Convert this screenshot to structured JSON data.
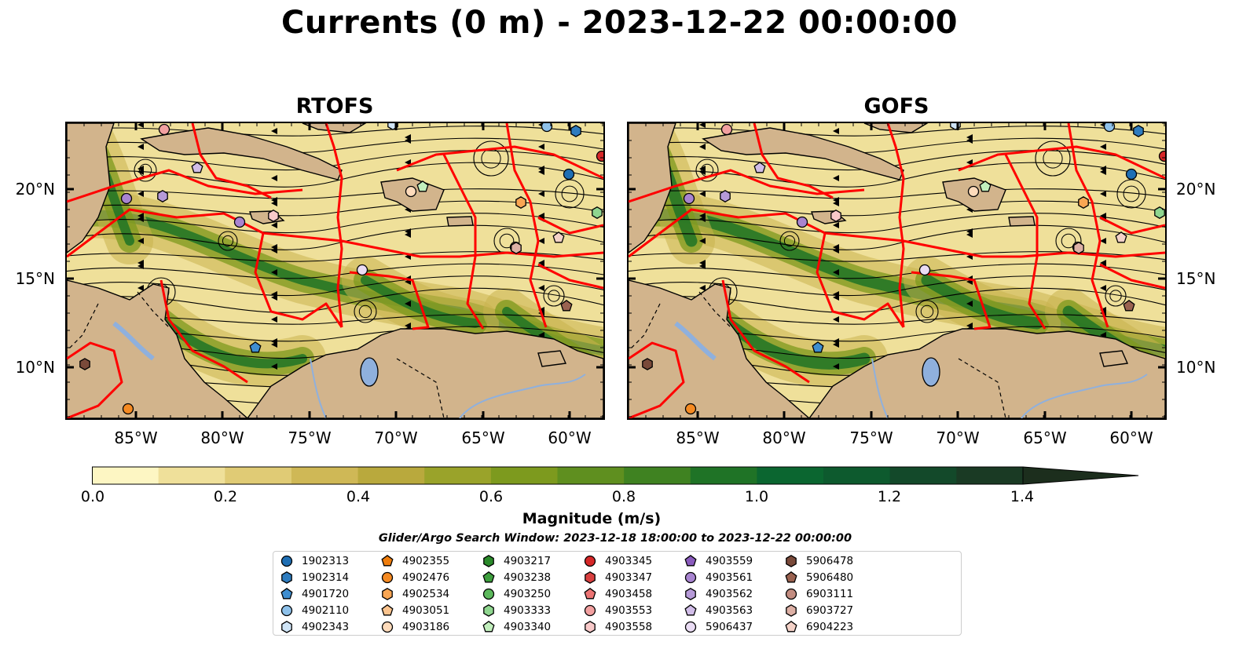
{
  "title": "Currents (0 m) - 2023-12-22 00:00:00",
  "panels": [
    {
      "title": "RTOFS"
    },
    {
      "title": "GOFS"
    }
  ],
  "lat_labels": [
    "20°N",
    "15°N",
    "10°N"
  ],
  "lon_labels": [
    "85°W",
    "80°W",
    "75°W",
    "70°W",
    "65°W",
    "60°W"
  ],
  "colorbar": {
    "label": "Magnitude (m/s)",
    "ticks": [
      "0.0",
      "0.2",
      "0.4",
      "0.6",
      "0.8",
      "1.0",
      "1.2",
      "1.4"
    ],
    "colors": [
      "#fdf6c3",
      "#efe09a",
      "#e0cb75",
      "#cfb856",
      "#b9a93d",
      "#9aa32a",
      "#7d9a1e",
      "#5f8f1f",
      "#3f8221",
      "#1f7326",
      "#0b6630",
      "#0d5a2e",
      "#13492a",
      "#1a3a24",
      "#1c2e1d"
    ],
    "extend": "max"
  },
  "search_window": "Glider/Argo Search Window: 2023-12-18 18:00:00 to 2023-12-22 00:00:00",
  "map_colors": {
    "land": "#d2b48c",
    "eez_lines": "#ff0000",
    "water_bodies": "#8fb0dd"
  },
  "legend": [
    {
      "id": "1902313",
      "shape": "circle",
      "color": "#1f6fb4"
    },
    {
      "id": "1902314",
      "shape": "hexagon",
      "color": "#2e7cbf"
    },
    {
      "id": "4901720",
      "shape": "pentagon",
      "color": "#3f8ed0"
    },
    {
      "id": "4902110",
      "shape": "circle",
      "color": "#8ec1ea"
    },
    {
      "id": "4902343",
      "shape": "hexagon",
      "color": "#cfe4f6"
    },
    {
      "id": "4902355",
      "shape": "pentagon",
      "color": "#ef7d0d"
    },
    {
      "id": "4902476",
      "shape": "circle",
      "color": "#f58a22"
    },
    {
      "id": "4902534",
      "shape": "hexagon",
      "color": "#f9a653"
    },
    {
      "id": "4903051",
      "shape": "pentagon",
      "color": "#fcc48e"
    },
    {
      "id": "4903186",
      "shape": "circle",
      "color": "#fedbbb"
    },
    {
      "id": "4903217",
      "shape": "hexagon",
      "color": "#2a8a2a"
    },
    {
      "id": "4903238",
      "shape": "pentagon",
      "color": "#3d9e3d"
    },
    {
      "id": "4903250",
      "shape": "circle",
      "color": "#5cb85c"
    },
    {
      "id": "4903333",
      "shape": "hexagon",
      "color": "#8fd68f"
    },
    {
      "id": "4903340",
      "shape": "pentagon",
      "color": "#c2efbd"
    },
    {
      "id": "4903345",
      "shape": "circle",
      "color": "#d62728"
    },
    {
      "id": "4903347",
      "shape": "hexagon",
      "color": "#d94040"
    },
    {
      "id": "4903458",
      "shape": "pentagon",
      "color": "#ec7474"
    },
    {
      "id": "4903553",
      "shape": "circle",
      "color": "#f2a0a0"
    },
    {
      "id": "4903558",
      "shape": "hexagon",
      "color": "#f8c9c9"
    },
    {
      "id": "4903559",
      "shape": "pentagon",
      "color": "#8a5bbd"
    },
    {
      "id": "4903561",
      "shape": "circle",
      "color": "#a884d0"
    },
    {
      "id": "4903562",
      "shape": "hexagon",
      "color": "#b69ad8"
    },
    {
      "id": "4903563",
      "shape": "pentagon",
      "color": "#d1bde8"
    },
    {
      "id": "5906437",
      "shape": "circle",
      "color": "#eadcf4"
    },
    {
      "id": "5906478",
      "shape": "hexagon",
      "color": "#7a4a3a"
    },
    {
      "id": "5906480",
      "shape": "pentagon",
      "color": "#9a6250"
    },
    {
      "id": "6903111",
      "shape": "circle",
      "color": "#c28c80"
    },
    {
      "id": "6903727",
      "shape": "hexagon",
      "color": "#ddb0a5"
    },
    {
      "id": "6904223",
      "shape": "pentagon",
      "color": "#f4d2c8"
    }
  ]
}
